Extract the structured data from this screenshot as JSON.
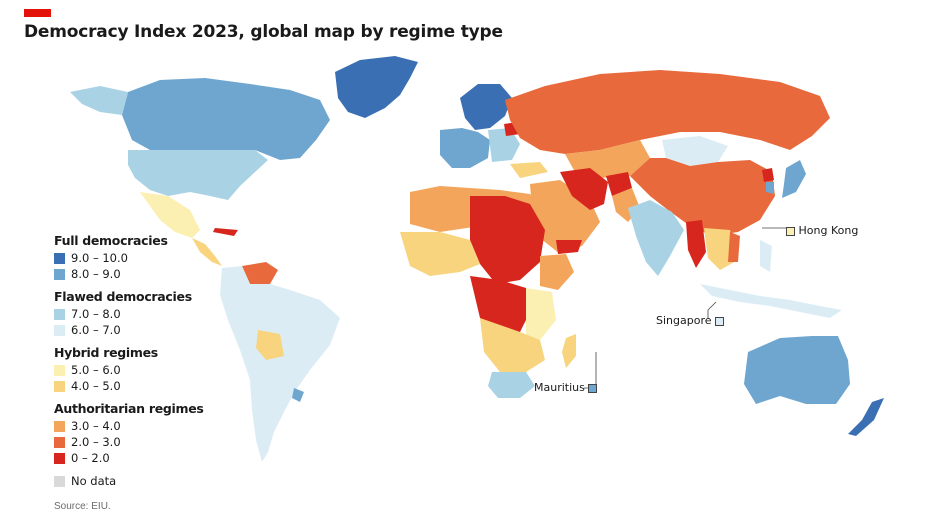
{
  "header": {
    "brand_color": "#e3120b",
    "title": "Democracy Index 2023, global map by regime type"
  },
  "legend": {
    "groups": [
      {
        "heading": "Full democracies",
        "items": [
          {
            "label": "9.0 – 10.0",
            "color": "#3a6fb3"
          },
          {
            "label": "8.0 – 9.0",
            "color": "#6ea6cf"
          }
        ]
      },
      {
        "heading": "Flawed democracies",
        "items": [
          {
            "label": "7.0 – 8.0",
            "color": "#a9d3e5"
          },
          {
            "label": "6.0 – 7.0",
            "color": "#dcecf5"
          }
        ]
      },
      {
        "heading": "Hybrid regimes",
        "items": [
          {
            "label": "5.0 – 6.0",
            "color": "#fbf0b2"
          },
          {
            "label": "4.0 – 5.0",
            "color": "#f8d47e"
          }
        ]
      },
      {
        "heading": "Authoritarian regimes",
        "items": [
          {
            "label": "3.0 – 4.0",
            "color": "#f3a65b"
          },
          {
            "label": "2.0 – 3.0",
            "color": "#e86a3c"
          },
          {
            "label": "0 – 2.0",
            "color": "#d7261e"
          }
        ]
      }
    ],
    "no_data": {
      "label": "No data",
      "color": "#d9d9d9"
    }
  },
  "callouts": {
    "hong_kong": {
      "label": "Hong Kong",
      "color": "#fbf0b2"
    },
    "singapore": {
      "label": "Singapore",
      "color": "#dcecf5"
    },
    "mauritius": {
      "label": "Mauritius",
      "color": "#6ea6cf"
    }
  },
  "source": "Source: EIU."
}
